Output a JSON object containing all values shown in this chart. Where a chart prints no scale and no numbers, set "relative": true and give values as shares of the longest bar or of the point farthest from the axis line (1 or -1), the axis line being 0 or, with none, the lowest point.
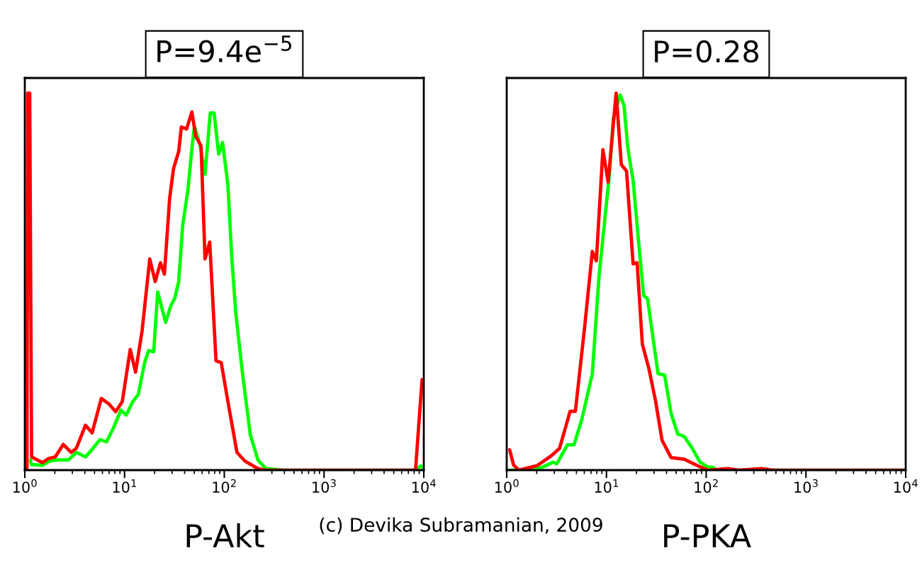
{
  "chart_data": [
    {
      "type": "line",
      "title": "P=9.4e$^{−5}$",
      "xlabel": "P-Akt",
      "relative": true,
      "log": "x",
      "xlim": [
        1,
        10000
      ],
      "xticks": [
        {
          "value": 1,
          "label": "10$^{0}$"
        },
        {
          "value": 10,
          "label": "10$^{1}$"
        },
        {
          "value": 100,
          "label": "10$^{2}$"
        },
        {
          "value": 1000,
          "label": "10$^{3}$"
        },
        {
          "value": 10000,
          "label": "10$^{4}$"
        }
      ],
      "tick_labels": "x",
      "grid": false,
      "legend": false,
      "annotations": [
        "(c) Devika Subramanian, 2009"
      ],
      "series": [
        {
          "color": "#00ff00",
          "x": [
            1.14,
            1.16,
            1.5,
            1.79,
            2.15,
            2.74,
            3.29,
            4.06,
            4.73,
            5.67,
            6.6,
            7.68,
            9.2,
            10.4,
            12.1,
            13.7,
            15.9,
            17.4,
            19.6,
            21.5,
            25.8,
            29.1,
            31.9,
            34.9,
            38.3,
            43.2,
            47.3,
            50.2,
            56.8,
            64.1,
            72.3,
            79.1,
            87.8,
            96.1,
            108.6,
            119,
            130,
            151,
            182,
            217,
            261,
            398,
            8260,
            9310,
            10000
          ],
          "values": [
            0.027,
            0.015,
            0.013,
            0.024,
            0.027,
            0.027,
            0.047,
            0.035,
            0.055,
            0.081,
            0.075,
            0.11,
            0.159,
            0.146,
            0.182,
            0.2,
            0.285,
            0.317,
            0.314,
            0.473,
            0.392,
            0.436,
            0.456,
            0.5,
            0.65,
            0.743,
            0.852,
            0.912,
            0.865,
            0.785,
            0.947,
            0.947,
            0.838,
            0.869,
            0.757,
            0.561,
            0.42,
            0.264,
            0.095,
            0.027,
            0.004,
            0,
            0,
            0.011,
            0.005
          ]
        },
        {
          "color": "#ff0000",
          "x": [
            1.05,
            1.07,
            1.12,
            1.17,
            1.5,
            1.74,
            2.02,
            2.43,
            2.92,
            3.29,
            4.06,
            4.73,
            5.85,
            7.0,
            8.16,
            9.5,
            11.4,
            12.9,
            15.0,
            17.9,
            20.3,
            22.9,
            25.1,
            28.3,
            31.0,
            34.9,
            37.1,
            41.9,
            47.3,
            51.8,
            58.5,
            64.1,
            71.4,
            82.6,
            93.2,
            108.6,
            134,
            161,
            217,
            260,
            8260,
            9610
          ],
          "values": [
            0,
            1,
            1,
            0.035,
            0.02,
            0.031,
            0.035,
            0.068,
            0.047,
            0.058,
            0.119,
            0.099,
            0.19,
            0.175,
            0.155,
            0.182,
            0.32,
            0.26,
            0.37,
            0.56,
            0.5,
            0.55,
            0.52,
            0.72,
            0.8,
            0.845,
            0.91,
            0.905,
            0.95,
            0.885,
            0.86,
            0.56,
            0.605,
            0.29,
            0.285,
            0.182,
            0.047,
            0.024,
            0.004,
            0,
            0,
            0.24
          ]
        }
      ]
    },
    {
      "type": "line",
      "title": "P=0.28",
      "xlabel": "P-PKA",
      "relative": true,
      "log": "x",
      "xlim": [
        1,
        10000
      ],
      "xticks": [
        {
          "value": 1,
          "label": "10$^{0}$"
        },
        {
          "value": 10,
          "label": "10$^{1}$"
        },
        {
          "value": 100,
          "label": "10$^{2}$"
        },
        {
          "value": 1000,
          "label": "10$^{3}$"
        },
        {
          "value": 10000,
          "label": "10$^{4}$"
        }
      ],
      "tick_labels": "x",
      "grid": false,
      "legend": false,
      "series": [
        {
          "color": "#00ff00",
          "x": [
            1.04,
            1.59,
            2.29,
            2.92,
            3.19,
            4.06,
            4.73,
            5.67,
            7.22,
            8.41,
            9.78,
            10.7,
            11.7,
            13.7,
            15.0,
            16.4,
            18.5,
            20.9,
            23.6,
            25.8,
            32.9,
            38.3,
            44.5,
            51.8,
            60.3,
            72.3,
            86.7,
            104,
            115,
            129,
            898,
            10000
          ],
          "values": [
            0,
            0,
            0.008,
            0.021,
            0.017,
            0.067,
            0.067,
            0.135,
            0.256,
            0.512,
            0.683,
            0.782,
            0.931,
            0.995,
            0.967,
            0.853,
            0.768,
            0.612,
            0.463,
            0.455,
            0.256,
            0.252,
            0.15,
            0.096,
            0.089,
            0.058,
            0.021,
            0.008,
            0.008,
            0,
            0,
            0
          ]
        },
        {
          "color": "#ff0000",
          "x": [
            1.07,
            1.17,
            1.32,
            2.02,
            2.83,
            3.39,
            4.32,
            4.88,
            6.03,
            7.22,
            7.92,
            9.21,
            10.4,
            12.5,
            14.1,
            15.9,
            18.5,
            20.3,
            22.9,
            26.6,
            31.0,
            36.1,
            44.5,
            60.3,
            81.5,
            104,
            165,
            210,
            361,
            462,
            10000
          ],
          "values": [
            0.054,
            0.014,
            0,
            0.012,
            0.039,
            0.058,
            0.156,
            0.156,
            0.377,
            0.58,
            0.555,
            0.85,
            0.764,
            1,
            0.81,
            0.793,
            0.547,
            0.55,
            0.334,
            0.27,
            0.185,
            0.079,
            0.033,
            0.029,
            0.012,
            0,
            0.004,
            0,
            0.004,
            0,
            0
          ]
        }
      ]
    }
  ]
}
